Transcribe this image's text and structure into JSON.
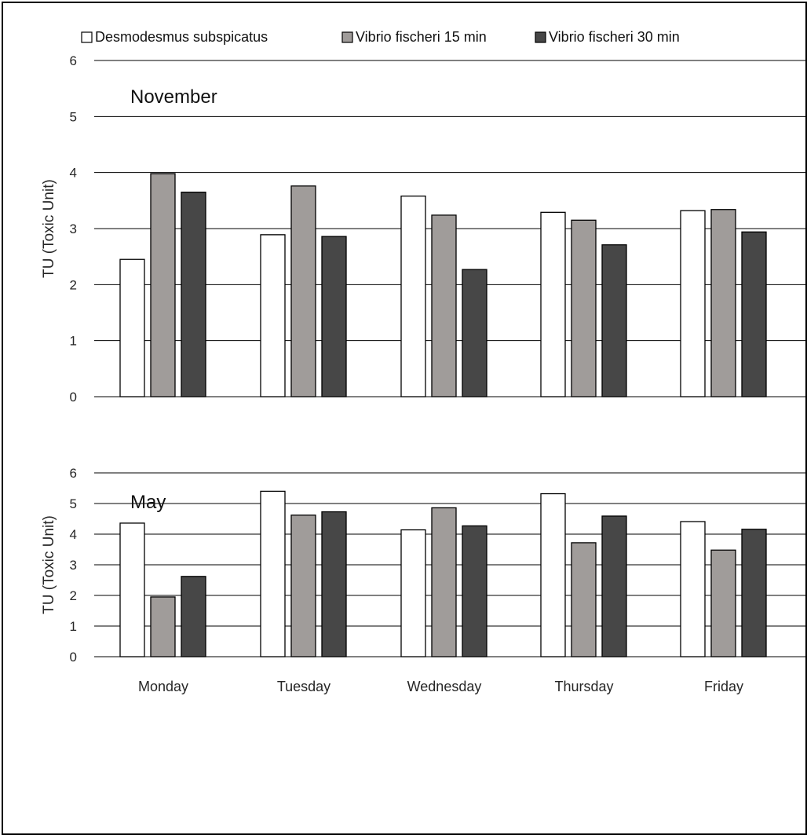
{
  "legend": {
    "items": [
      {
        "label": "Desmodesmus subspicatus",
        "color": "#ffffff"
      },
      {
        "label": "Vibrio fischeri 15 min",
        "color": "#a09c9a"
      },
      {
        "label": "Vibrio fischeri 30 min",
        "color": "#474747"
      }
    ]
  },
  "chart_data": [
    {
      "type": "bar",
      "title": "November",
      "ylabel": "TU (Toxic Unit)",
      "ylim": [
        0,
        6
      ],
      "yticks": [
        0,
        1,
        2,
        3,
        4,
        5,
        6
      ],
      "grid": true,
      "categories": [
        "Monday",
        "Tuesday",
        "Wednesday",
        "Thursday",
        "Friday"
      ],
      "series": [
        {
          "name": "Desmodesmus subspicatus",
          "color": "#ffffff",
          "values": [
            2.45,
            2.89,
            3.58,
            3.29,
            3.32
          ]
        },
        {
          "name": "Vibrio fischeri 15 min",
          "color": "#a09c9a",
          "values": [
            3.98,
            3.76,
            3.24,
            3.15,
            3.34
          ]
        },
        {
          "name": "Vibrio fischeri 30 min",
          "color": "#474747",
          "values": [
            3.65,
            2.86,
            2.27,
            2.71,
            2.94
          ]
        }
      ]
    },
    {
      "type": "bar",
      "title": "May",
      "ylabel": "TU (Toxic Unit)",
      "ylim": [
        0,
        6
      ],
      "yticks": [
        0,
        1,
        2,
        3,
        4,
        5,
        6
      ],
      "grid": true,
      "categories": [
        "Monday",
        "Tuesday",
        "Wednesday",
        "Thursday",
        "Friday"
      ],
      "series": [
        {
          "name": "Desmodesmus subspicatus",
          "color": "#ffffff",
          "values": [
            4.36,
            5.4,
            4.14,
            5.32,
            4.41
          ]
        },
        {
          "name": "Vibrio fischeri 15 min",
          "color": "#a09c9a",
          "values": [
            1.95,
            4.62,
            4.86,
            3.72,
            3.48
          ]
        },
        {
          "name": "Vibrio fischeri 30 min",
          "color": "#474747",
          "values": [
            2.62,
            4.73,
            4.27,
            4.59,
            4.16
          ]
        }
      ]
    }
  ]
}
